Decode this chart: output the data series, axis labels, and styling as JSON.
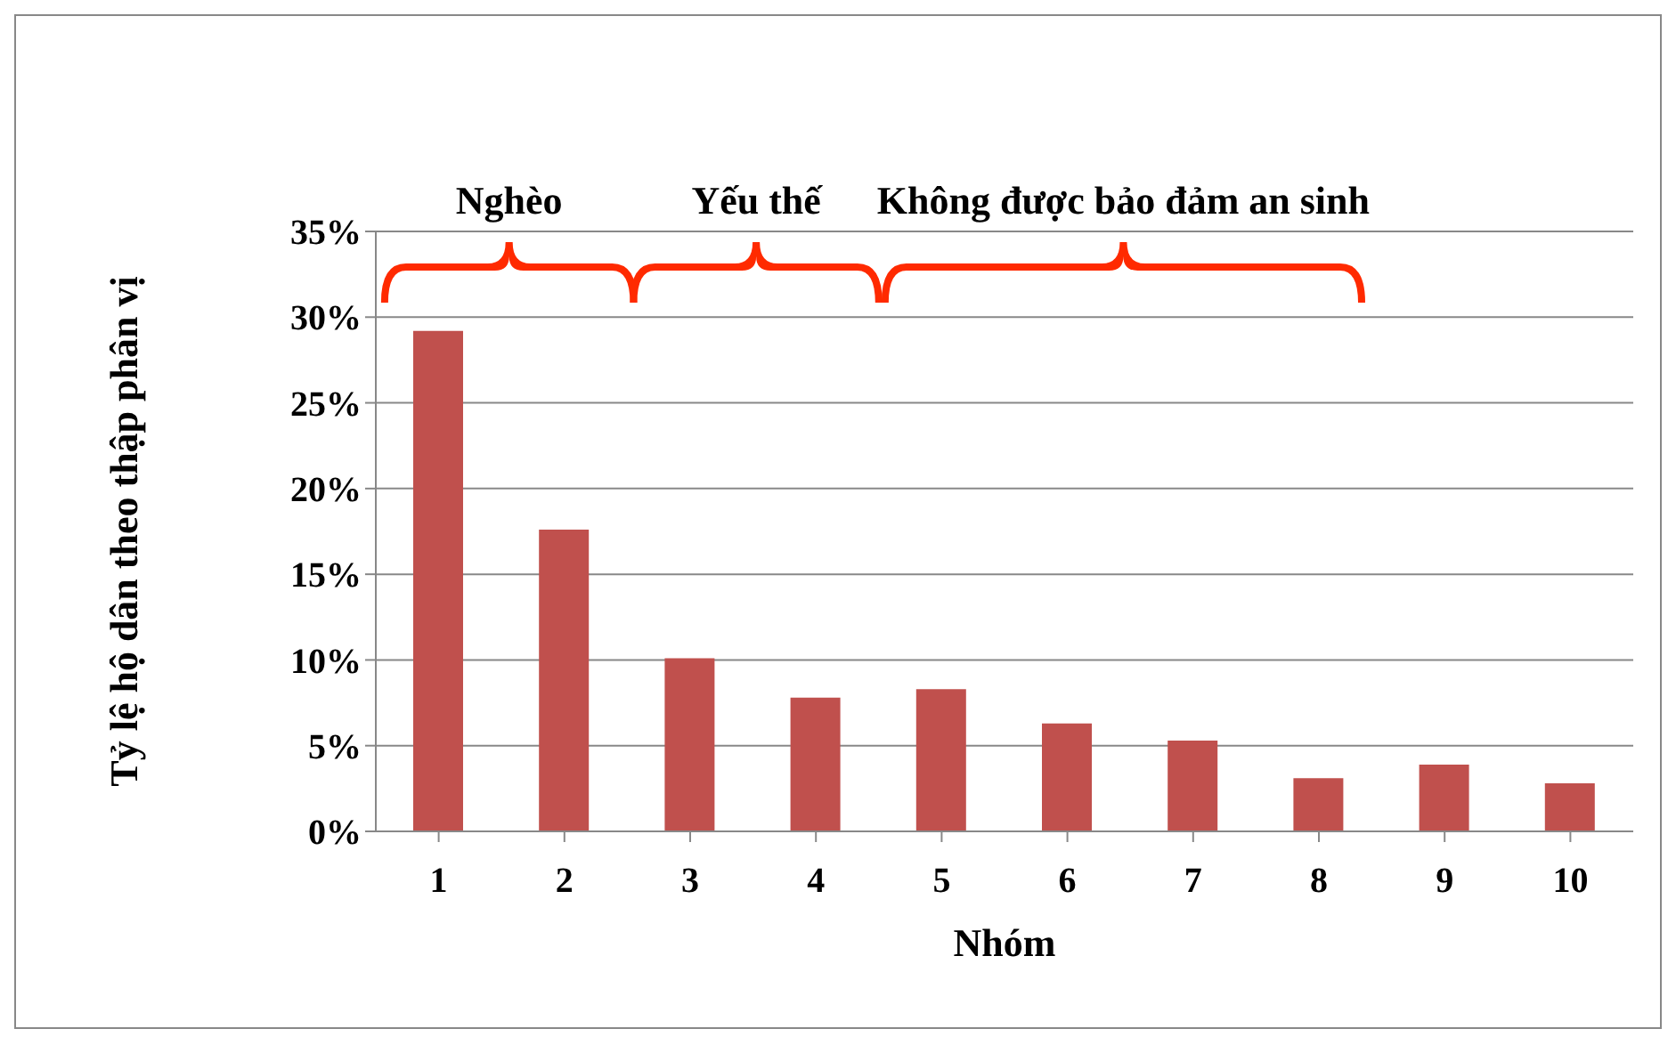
{
  "chart_data": {
    "type": "bar",
    "xlabel": "Nhóm",
    "ylabel": "Tỷ lệ hộ dân theo thập phân vị",
    "categories": [
      "1",
      "2",
      "3",
      "4",
      "5",
      "6",
      "7",
      "8",
      "9",
      "10"
    ],
    "values": [
      29.2,
      17.6,
      10.1,
      7.8,
      8.3,
      6.3,
      5.3,
      3.1,
      3.9,
      2.8
    ],
    "color": "#c0504d",
    "ylim": [
      0,
      35
    ],
    "yticks": [
      {
        "value": 0,
        "label": "0%"
      },
      {
        "value": 5,
        "label": "5%"
      },
      {
        "value": 10,
        "label": "10%"
      },
      {
        "value": 15,
        "label": "15%"
      },
      {
        "value": 20,
        "label": "20%"
      },
      {
        "value": 25,
        "label": "25%"
      },
      {
        "value": 30,
        "label": "30%"
      },
      {
        "value": 35,
        "label": "35%"
      }
    ],
    "grid": "y",
    "annotations": [
      "Nghèo",
      "Yếu thế",
      "Không được bảo đảm an sinh"
    ]
  }
}
